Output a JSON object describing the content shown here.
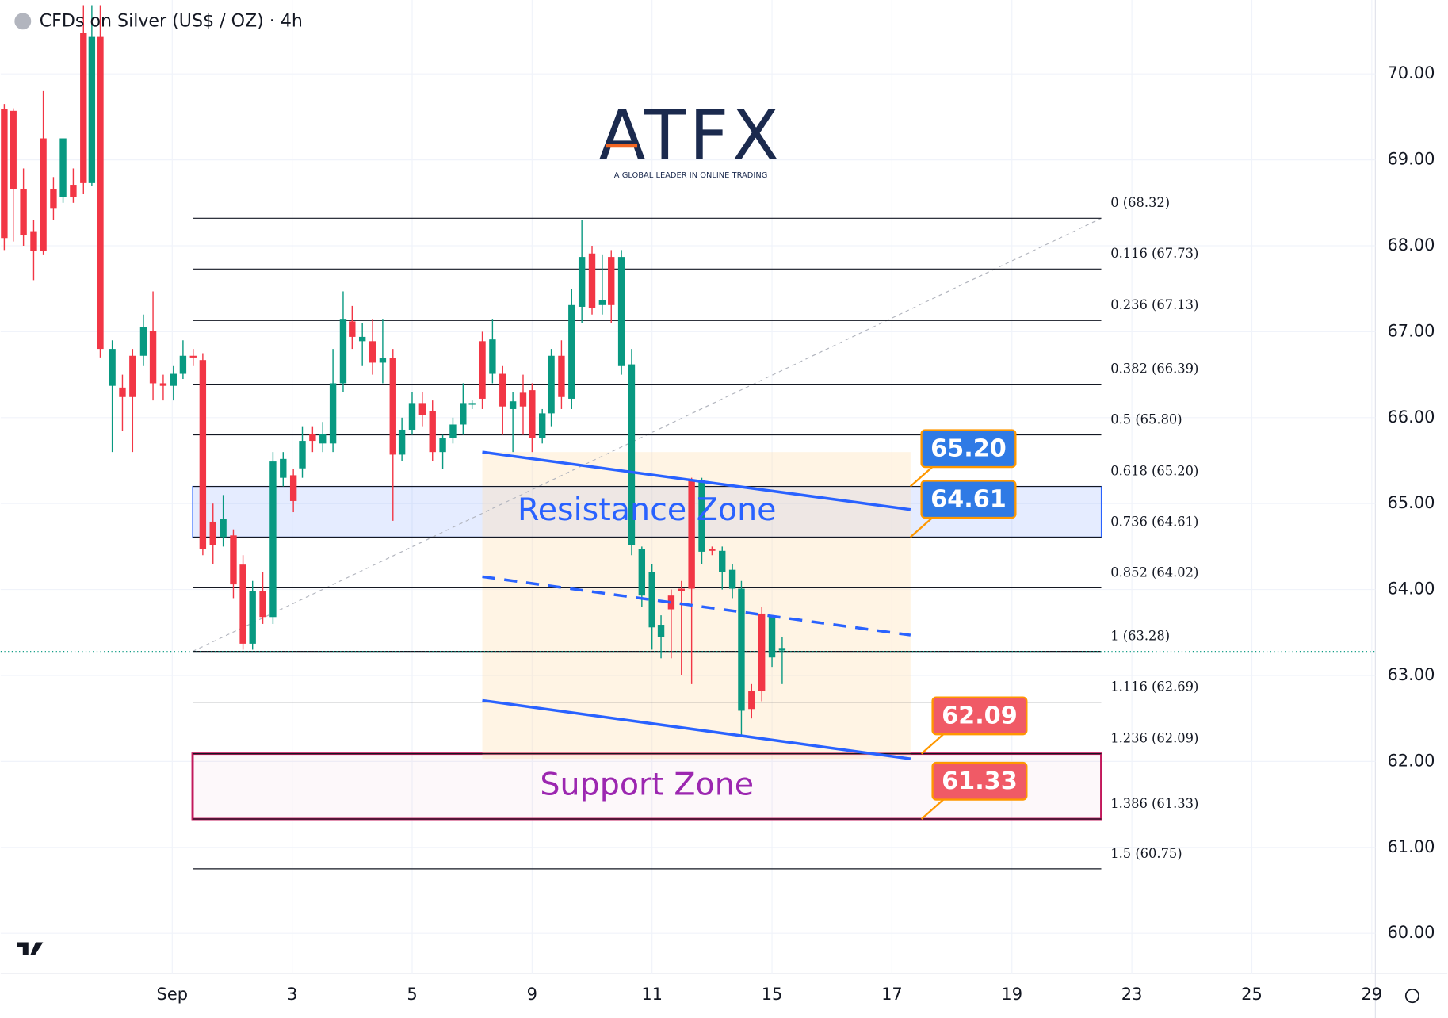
{
  "chart_data": {
    "type": "candlestick",
    "title": "CFDs on Silver (US$ / OZ) · 4h",
    "logo": {
      "name": "ATFX",
      "tagline": "A GLOBAL LEADER IN ONLINE TRADING"
    },
    "xlim": [
      -2.86,
      20.06
    ],
    "xticks": [
      {
        "value": 0,
        "label": "Sep"
      },
      {
        "value": 2,
        "label": "3"
      },
      {
        "value": 4,
        "label": "5"
      },
      {
        "value": 6,
        "label": "9"
      },
      {
        "value": 8,
        "label": "11"
      },
      {
        "value": 10,
        "label": "15"
      },
      {
        "value": 12,
        "label": "17"
      },
      {
        "value": 14,
        "label": "19"
      },
      {
        "value": 16,
        "label": "23"
      },
      {
        "value": 18,
        "label": "25"
      },
      {
        "value": 20,
        "label": "29"
      }
    ],
    "ylim": [
      59.53,
      70.86
    ],
    "yticks": [
      {
        "value": 60,
        "label": "60.00"
      },
      {
        "value": 61,
        "label": "61.00"
      },
      {
        "value": 62,
        "label": "62.00"
      },
      {
        "value": 63,
        "label": "63.00"
      },
      {
        "value": 64,
        "label": "64.00"
      },
      {
        "value": 65,
        "label": "65.00"
      },
      {
        "value": 66,
        "label": "66.00"
      },
      {
        "value": 67,
        "label": "67.00"
      },
      {
        "value": 68,
        "label": "68.00"
      },
      {
        "value": 69,
        "label": "69.00"
      },
      {
        "value": 70,
        "label": "70.00"
      }
    ],
    "grid": true,
    "up_color": "#089981",
    "down_color": "#f23645",
    "x": [
      -2.8,
      -2.65,
      -2.48,
      -2.31,
      -2.15,
      -1.98,
      -1.82,
      -1.65,
      -1.48,
      -1.34,
      -1.2,
      -1.0,
      -0.83,
      -0.66,
      -0.48,
      -0.32,
      -0.15,
      0.02,
      0.18,
      0.35,
      0.51,
      0.68,
      0.85,
      1.02,
      1.18,
      1.34,
      1.51,
      1.68,
      1.85,
      2.02,
      2.17,
      2.34,
      2.51,
      2.68,
      2.85,
      3.0,
      3.17,
      3.34,
      3.51,
      3.68,
      3.83,
      4.0,
      4.17,
      4.34,
      4.51,
      4.68,
      4.85,
      5.0,
      5.17,
      5.34,
      5.51,
      5.68,
      5.85,
      6.0,
      6.17,
      6.32,
      6.49,
      6.66,
      6.83,
      7.0,
      7.17,
      7.32,
      7.49,
      7.66,
      7.83,
      8.0,
      8.15,
      8.32,
      8.49,
      8.66,
      8.83,
      9.0,
      9.17,
      9.34,
      9.49,
      9.66,
      9.83,
      10.0,
      10.17
    ],
    "open": [
      69.59,
      69.57,
      68.66,
      68.17,
      69.25,
      68.66,
      68.57,
      68.71,
      70.48,
      68.73,
      70.43,
      66.37,
      66.35,
      66.72,
      66.72,
      67.01,
      66.4,
      66.37,
      66.51,
      66.72,
      66.67,
      64.79,
      64.61,
      64.63,
      64.29,
      63.37,
      63.98,
      63.68,
      65.3,
      65.33,
      65.41,
      65.81,
      65.7,
      65.7,
      66.4,
      67.12,
      66.89,
      66.89,
      66.64,
      66.69,
      65.57,
      65.86,
      66.17,
      66.08,
      65.6,
      65.76,
      65.92,
      66.15,
      66.89,
      66.51,
      66.51,
      66.1,
      66.29,
      66.32,
      65.76,
      66.05,
      66.72,
      66.22,
      67.29,
      67.91,
      67.31,
      67.87,
      66.6,
      64.52,
      63.93,
      63.56,
      63.45,
      63.93,
      64.01,
      65.27,
      64.44,
      64.47,
      64.2,
      64.01,
      62.59,
      62.82,
      63.72,
      63.21,
      63.29
    ],
    "high": [
      69.65,
      69.6,
      68.9,
      68.3,
      69.8,
      68.8,
      69.25,
      68.9,
      70.8,
      70.8,
      70.8,
      66.9,
      66.5,
      66.8,
      67.2,
      67.47,
      66.5,
      66.6,
      66.9,
      66.8,
      66.75,
      65.0,
      65.1,
      64.7,
      64.4,
      64.1,
      64.2,
      65.6,
      65.6,
      65.4,
      65.9,
      65.9,
      65.95,
      66.8,
      67.47,
      67.3,
      67.1,
      67.15,
      67.15,
      66.8,
      66.0,
      66.3,
      66.3,
      66.2,
      65.8,
      66.0,
      66.4,
      66.2,
      67.0,
      67.15,
      66.6,
      66.3,
      66.5,
      66.4,
      66.1,
      66.8,
      66.9,
      67.5,
      68.3,
      68.0,
      67.9,
      67.95,
      67.95,
      66.8,
      64.5,
      64.3,
      63.7,
      64.0,
      64.1,
      65.3,
      65.3,
      64.5,
      64.5,
      64.3,
      64.1,
      62.9,
      63.8,
      63.7,
      63.45
    ],
    "low": [
      67.95,
      68.05,
      68.0,
      67.6,
      67.9,
      68.3,
      68.5,
      68.5,
      68.6,
      68.7,
      66.7,
      65.6,
      65.85,
      65.6,
      66.6,
      66.2,
      66.2,
      66.2,
      66.45,
      66.6,
      64.4,
      64.3,
      64.5,
      63.9,
      63.3,
      63.3,
      63.6,
      63.6,
      65.2,
      64.9,
      65.3,
      65.6,
      65.6,
      65.6,
      66.3,
      66.8,
      66.6,
      66.5,
      66.4,
      64.8,
      65.5,
      65.8,
      65.9,
      65.5,
      65.4,
      65.7,
      65.8,
      66.1,
      66.1,
      66.4,
      65.8,
      65.6,
      65.8,
      65.6,
      65.7,
      65.9,
      66.1,
      66.1,
      67.1,
      67.2,
      67.2,
      67.1,
      66.5,
      64.4,
      63.8,
      63.3,
      63.2,
      63.2,
      63.0,
      62.9,
      64.3,
      64.4,
      64.0,
      63.9,
      62.3,
      62.5,
      62.7,
      63.1,
      62.9
    ],
    "close": [
      68.09,
      68.66,
      68.12,
      67.94,
      67.94,
      68.44,
      69.25,
      68.57,
      68.73,
      70.43,
      66.8,
      66.8,
      66.24,
      66.24,
      67.05,
      66.4,
      66.37,
      66.51,
      66.72,
      66.7,
      64.47,
      64.52,
      64.82,
      64.06,
      63.37,
      63.98,
      63.68,
      65.49,
      65.52,
      65.03,
      65.73,
      65.73,
      65.81,
      66.4,
      67.15,
      66.94,
      66.94,
      66.64,
      66.69,
      65.57,
      65.86,
      66.17,
      66.03,
      65.6,
      65.76,
      65.92,
      66.17,
      66.17,
      66.22,
      66.91,
      66.13,
      66.19,
      66.13,
      65.76,
      66.05,
      66.72,
      66.24,
      67.31,
      67.87,
      67.28,
      67.37,
      67.31,
      67.87,
      66.62,
      64.47,
      64.2,
      63.59,
      63.77,
      63.98,
      64.01,
      65.27,
      64.45,
      64.45,
      64.23,
      64.01,
      62.61,
      62.82,
      63.69,
      63.32
    ],
    "last_price": 63.28,
    "fib_range": [
      0.34,
      15.49
    ],
    "fib_levels": [
      {
        "label": "0 (68.32)",
        "value": 68.32
      },
      {
        "label": "0.116 (67.73)",
        "value": 67.73
      },
      {
        "label": "0.236 (67.13)",
        "value": 67.13
      },
      {
        "label": "0.382 (66.39)",
        "value": 66.39
      },
      {
        "label": "0.5 (65.80)",
        "value": 65.8
      },
      {
        "label": "0.618 (65.20)",
        "value": 65.2
      },
      {
        "label": "0.736 (64.61)",
        "value": 64.61
      },
      {
        "label": "0.852 (64.02)",
        "value": 64.02
      },
      {
        "label": "1 (63.28)",
        "value": 63.28
      },
      {
        "label": "1.116 (62.69)",
        "value": 62.69
      },
      {
        "label": "1.236 (62.09)",
        "value": 62.09
      },
      {
        "label": "1.386 (61.33)",
        "value": 61.33
      },
      {
        "label": "1.5 (60.75)",
        "value": 60.75
      }
    ],
    "zones": [
      {
        "label": "Resistance Zone",
        "low": 64.61,
        "high": 65.2,
        "color": "#2962ff"
      },
      {
        "label": "Support Zone",
        "low": 61.33,
        "high": 62.09,
        "color": "#c2185b"
      }
    ],
    "channel": {
      "x": [
        5.17,
        12.31
      ],
      "upper": [
        65.6,
        64.93
      ],
      "middle": [
        64.15,
        63.47
      ],
      "lower": [
        62.71,
        62.03
      ],
      "color": "#2962ff"
    },
    "callouts": [
      {
        "values": 65.2,
        "value_labels": "65.20",
        "color": "#2f7ae5"
      },
      {
        "values": 64.61,
        "value_labels": "64.61",
        "color": "#2f7ae5"
      },
      {
        "values": 62.09,
        "value_labels": "62.09",
        "color": "#f05a66"
      },
      {
        "values": 61.33,
        "value_labels": "61.33",
        "color": "#f05a66"
      }
    ]
  }
}
